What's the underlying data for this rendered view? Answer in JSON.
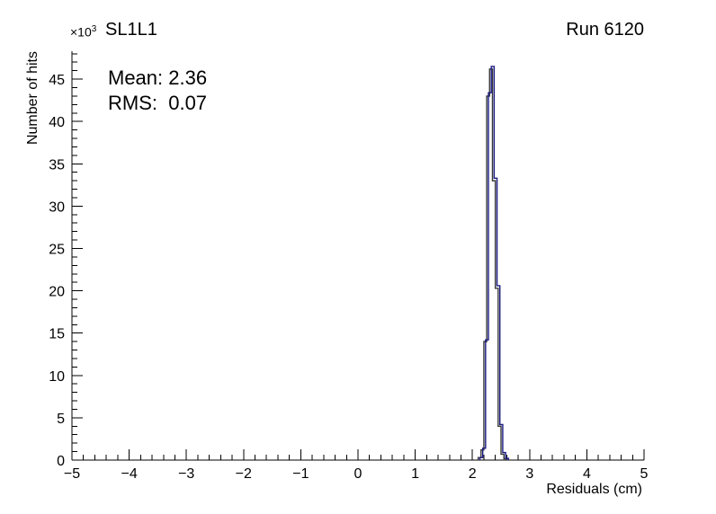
{
  "header": {
    "title": "SL1L1",
    "run_label": "Run 6120"
  },
  "stats": {
    "mean_line": "Mean: 2.36",
    "rms_line": "RMS:  0.07"
  },
  "y_multiplier": {
    "base": "×10",
    "exp": "3"
  },
  "chart_data": {
    "type": "histogram",
    "title": "SL1L1",
    "annotation_run": "Run 6120",
    "annotations": [
      "Mean: 2.36",
      "RMS:  0.07"
    ],
    "xlabel": "Residuals (cm)",
    "ylabel": "Number of hits",
    "y_unit_multiplier": "×10³",
    "grid": false,
    "legend": "none",
    "axes": {
      "x": {
        "label": "Residuals (cm)",
        "min": -5,
        "max": 5,
        "major_ticks": [
          -5,
          -4,
          -3,
          -2,
          -1,
          0,
          1,
          2,
          3,
          4,
          5
        ],
        "tick_labels": [
          "−5",
          "−4",
          "−3",
          "−2",
          "−1",
          "0",
          "1",
          "2",
          "3",
          "4",
          "5"
        ],
        "minor_step": 0.2
      },
      "y": {
        "label": "Number of hits",
        "min": 0,
        "max": 48.3,
        "major_ticks": [
          0,
          5,
          10,
          15,
          20,
          25,
          30,
          35,
          40,
          45
        ],
        "tick_labels": [
          "0",
          "5",
          "10",
          "15",
          "20",
          "25",
          "30",
          "35",
          "40",
          "45"
        ],
        "minor_step": 1
      }
    },
    "series": [
      {
        "name": "outline-dark",
        "color": "#3a3a3a",
        "x_start": 2.1,
        "bin_width": 0.05,
        "values": [
          0.3,
          1.2,
          14.0,
          43.0,
          46.2,
          33.0,
          20.3,
          4.0,
          0.7,
          0.15
        ]
      },
      {
        "name": "outline-blue",
        "color": "#1b1b84",
        "x_start": 2.13,
        "bin_width": 0.05,
        "values": [
          0.3,
          1.4,
          14.2,
          43.4,
          46.5,
          33.3,
          20.6,
          4.2,
          0.9,
          0.2
        ]
      }
    ],
    "stats_values": {
      "mean": 2.36,
      "rms": 0.07
    }
  }
}
